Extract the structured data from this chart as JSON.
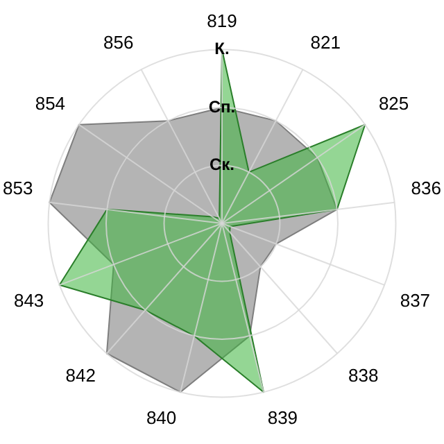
{
  "chart_data": {
    "type": "radar",
    "categories": [
      "819",
      "821",
      "825",
      "836",
      "837",
      "838",
      "839",
      "840",
      "842",
      "843",
      "853",
      "854",
      "856"
    ],
    "ylim": [
      0,
      3
    ],
    "yticks": [
      {
        "value": 1,
        "label": "Ск."
      },
      {
        "value": 2,
        "label": "Сп."
      },
      {
        "value": 3,
        "label": "К."
      }
    ],
    "grid": true,
    "legend": false,
    "series": [
      {
        "color": "#b4b4b4",
        "values": [
          2,
          2,
          2,
          2,
          1,
          1,
          2,
          3,
          3,
          2,
          3,
          3,
          2
        ]
      },
      {
        "color": "#3cb43c",
        "values": [
          3,
          1,
          3,
          2,
          0.15,
          0.2,
          3,
          2,
          2,
          3,
          2,
          0.2,
          0.1
        ]
      }
    ]
  }
}
